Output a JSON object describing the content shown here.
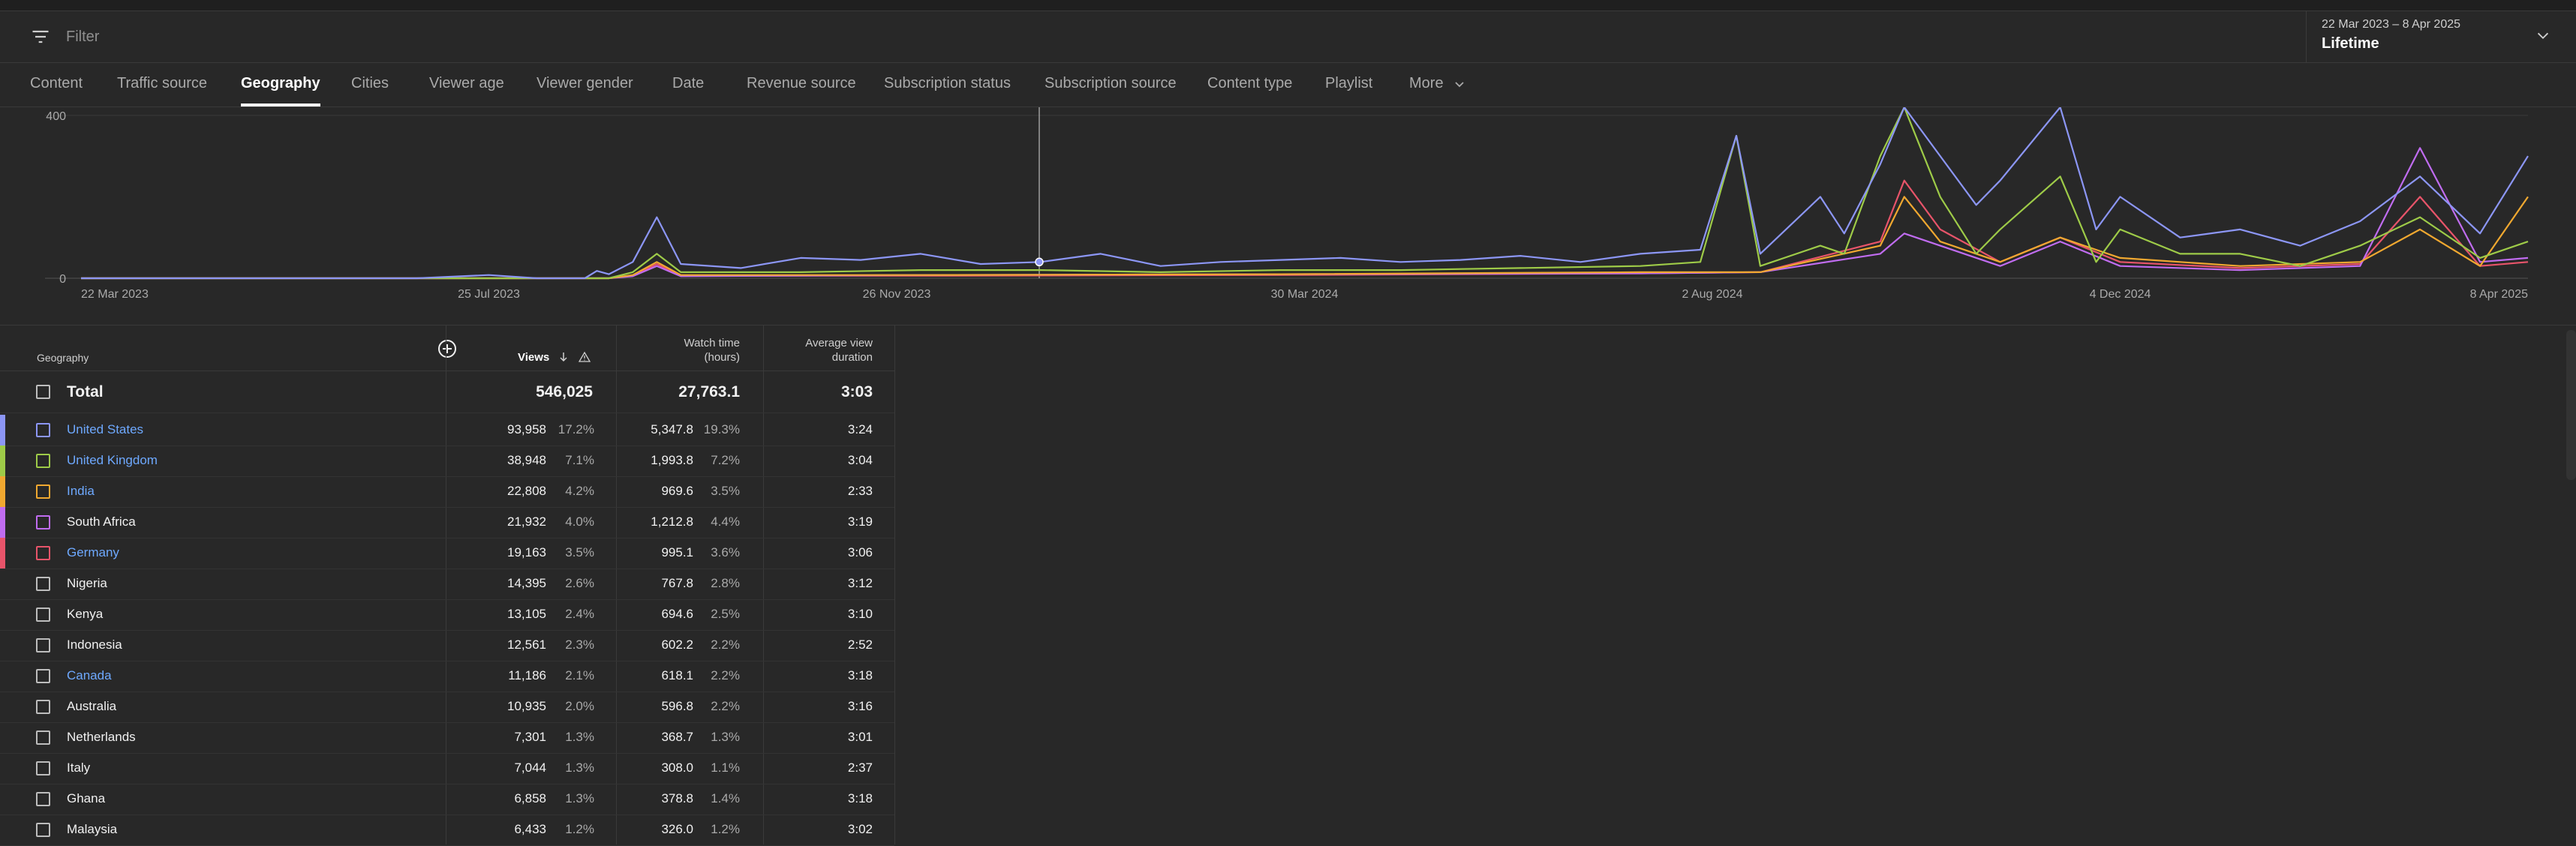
{
  "filter": {
    "placeholder": "Filter",
    "icon": "filter-icon"
  },
  "date_selector": {
    "range": "22 Mar 2023 – 8 Apr 2025",
    "label": "Lifetime"
  },
  "tabs": [
    {
      "label": "Content"
    },
    {
      "label": "Traffic source"
    },
    {
      "label": "Geography",
      "active": true
    },
    {
      "label": "Cities"
    },
    {
      "label": "Viewer age"
    },
    {
      "label": "Viewer gender"
    },
    {
      "label": "Date"
    },
    {
      "label": "Revenue source"
    },
    {
      "label": "Subscription status"
    },
    {
      "label": "Subscription source"
    },
    {
      "label": "Content type"
    },
    {
      "label": "Playlist"
    },
    {
      "label": "More"
    }
  ],
  "chart_data": {
    "type": "line",
    "y_ticks": [
      "400",
      "0"
    ],
    "x_ticks": [
      "22 Mar 2023",
      "25 Jul 2023",
      "26 Nov 2023",
      "30 Mar 2024",
      "2 Aug 2024",
      "4 Dec 2024",
      "8 Apr 2025"
    ],
    "ylim": [
      0,
      420
    ],
    "colors": {
      "United States": "#8c96f5",
      "United Kingdom": "#9ecb48",
      "India": "#f0a830",
      "South Africa": "#c06cf0",
      "Germany": "#e8546a"
    },
    "series": [
      {
        "name": "United States",
        "color": "#8c96f5",
        "points": [
          [
            0,
            0
          ],
          [
            28,
            0
          ],
          [
            34,
            8
          ],
          [
            38,
            0
          ],
          [
            42,
            0
          ],
          [
            43,
            18
          ],
          [
            44,
            10
          ],
          [
            46,
            40
          ],
          [
            48,
            150
          ],
          [
            50,
            35
          ],
          [
            55,
            25
          ],
          [
            60,
            50
          ],
          [
            65,
            45
          ],
          [
            70,
            60
          ],
          [
            75,
            35
          ],
          [
            80,
            40
          ],
          [
            85,
            60
          ],
          [
            90,
            30
          ],
          [
            95,
            40
          ],
          [
            100,
            45
          ],
          [
            105,
            50
          ],
          [
            110,
            40
          ],
          [
            115,
            45
          ],
          [
            120,
            55
          ],
          [
            125,
            40
          ],
          [
            130,
            60
          ],
          [
            135,
            70
          ],
          [
            138,
            350
          ],
          [
            140,
            60
          ],
          [
            145,
            200
          ],
          [
            147,
            110
          ],
          [
            150,
            280
          ],
          [
            152,
            420
          ],
          [
            155,
            300
          ],
          [
            158,
            180
          ],
          [
            160,
            240
          ],
          [
            165,
            420
          ],
          [
            168,
            120
          ],
          [
            170,
            200
          ],
          [
            175,
            100
          ],
          [
            180,
            120
          ],
          [
            185,
            80
          ],
          [
            190,
            140
          ],
          [
            195,
            250
          ],
          [
            200,
            110
          ],
          [
            204,
            300
          ]
        ]
      },
      {
        "name": "United Kingdom",
        "color": "#9ecb48",
        "points": [
          [
            0,
            0
          ],
          [
            44,
            0
          ],
          [
            46,
            15
          ],
          [
            48,
            60
          ],
          [
            50,
            15
          ],
          [
            60,
            15
          ],
          [
            70,
            20
          ],
          [
            80,
            20
          ],
          [
            90,
            15
          ],
          [
            100,
            20
          ],
          [
            110,
            20
          ],
          [
            120,
            25
          ],
          [
            130,
            30
          ],
          [
            135,
            40
          ],
          [
            138,
            350
          ],
          [
            140,
            30
          ],
          [
            145,
            80
          ],
          [
            147,
            60
          ],
          [
            150,
            300
          ],
          [
            152,
            420
          ],
          [
            155,
            200
          ],
          [
            158,
            60
          ],
          [
            160,
            120
          ],
          [
            165,
            250
          ],
          [
            168,
            40
          ],
          [
            170,
            120
          ],
          [
            175,
            60
          ],
          [
            180,
            60
          ],
          [
            185,
            30
          ],
          [
            190,
            80
          ],
          [
            195,
            150
          ],
          [
            200,
            50
          ],
          [
            204,
            90
          ]
        ]
      },
      {
        "name": "India",
        "color": "#f0a830",
        "points": [
          [
            0,
            0
          ],
          [
            44,
            0
          ],
          [
            46,
            8
          ],
          [
            48,
            40
          ],
          [
            50,
            8
          ],
          [
            70,
            8
          ],
          [
            100,
            10
          ],
          [
            130,
            15
          ],
          [
            140,
            15
          ],
          [
            150,
            80
          ],
          [
            152,
            200
          ],
          [
            155,
            90
          ],
          [
            160,
            40
          ],
          [
            165,
            100
          ],
          [
            170,
            50
          ],
          [
            180,
            30
          ],
          [
            190,
            40
          ],
          [
            195,
            120
          ],
          [
            200,
            30
          ],
          [
            204,
            200
          ]
        ]
      },
      {
        "name": "South Africa",
        "color": "#c06cf0",
        "points": [
          [
            0,
            0
          ],
          [
            44,
            0
          ],
          [
            46,
            5
          ],
          [
            48,
            30
          ],
          [
            50,
            5
          ],
          [
            70,
            8
          ],
          [
            100,
            10
          ],
          [
            130,
            12
          ],
          [
            140,
            15
          ],
          [
            150,
            60
          ],
          [
            152,
            110
          ],
          [
            155,
            80
          ],
          [
            160,
            30
          ],
          [
            165,
            90
          ],
          [
            170,
            30
          ],
          [
            180,
            20
          ],
          [
            190,
            30
          ],
          [
            195,
            320
          ],
          [
            200,
            40
          ],
          [
            204,
            50
          ]
        ]
      },
      {
        "name": "Germany",
        "color": "#e8546a",
        "points": [
          [
            0,
            0
          ],
          [
            44,
            0
          ],
          [
            46,
            6
          ],
          [
            48,
            35
          ],
          [
            50,
            6
          ],
          [
            70,
            6
          ],
          [
            100,
            8
          ],
          [
            130,
            12
          ],
          [
            140,
            15
          ],
          [
            150,
            90
          ],
          [
            152,
            240
          ],
          [
            155,
            120
          ],
          [
            160,
            40
          ],
          [
            165,
            100
          ],
          [
            170,
            40
          ],
          [
            180,
            25
          ],
          [
            190,
            35
          ],
          [
            195,
            200
          ],
          [
            200,
            30
          ],
          [
            204,
            40
          ]
        ]
      }
    ]
  },
  "table": {
    "headers": {
      "geography": "Geography",
      "views": "Views",
      "watch_time_1": "Watch time",
      "watch_time_2": "(hours)",
      "avd_1": "Average view",
      "avd_2": "duration"
    },
    "total": {
      "label": "Total",
      "views": "546,025",
      "watch": "27,763.1",
      "avd": "3:03"
    },
    "rows": [
      {
        "name": "United States",
        "link": true,
        "color": "#8c96f5",
        "views": "93,958",
        "views_pct": "17.2%",
        "watch": "5,347.8",
        "watch_pct": "19.3%",
        "avd": "3:24"
      },
      {
        "name": "United Kingdom",
        "link": true,
        "color": "#9ecb48",
        "views": "38,948",
        "views_pct": "7.1%",
        "watch": "1,993.8",
        "watch_pct": "7.2%",
        "avd": "3:04"
      },
      {
        "name": "India",
        "link": true,
        "color": "#f0a830",
        "views": "22,808",
        "views_pct": "4.2%",
        "watch": "969.6",
        "watch_pct": "3.5%",
        "avd": "2:33"
      },
      {
        "name": "South Africa",
        "link": false,
        "color": "#c06cf0",
        "views": "21,932",
        "views_pct": "4.0%",
        "watch": "1,212.8",
        "watch_pct": "4.4%",
        "avd": "3:19"
      },
      {
        "name": "Germany",
        "link": true,
        "color": "#e8546a",
        "views": "19,163",
        "views_pct": "3.5%",
        "watch": "995.1",
        "watch_pct": "3.6%",
        "avd": "3:06"
      },
      {
        "name": "Nigeria",
        "link": false,
        "color": "",
        "views": "14,395",
        "views_pct": "2.6%",
        "watch": "767.8",
        "watch_pct": "2.8%",
        "avd": "3:12"
      },
      {
        "name": "Kenya",
        "link": false,
        "color": "",
        "views": "13,105",
        "views_pct": "2.4%",
        "watch": "694.6",
        "watch_pct": "2.5%",
        "avd": "3:10"
      },
      {
        "name": "Indonesia",
        "link": false,
        "color": "",
        "views": "12,561",
        "views_pct": "2.3%",
        "watch": "602.2",
        "watch_pct": "2.2%",
        "avd": "2:52"
      },
      {
        "name": "Canada",
        "link": true,
        "color": "",
        "views": "11,186",
        "views_pct": "2.1%",
        "watch": "618.1",
        "watch_pct": "2.2%",
        "avd": "3:18"
      },
      {
        "name": "Australia",
        "link": false,
        "color": "",
        "views": "10,935",
        "views_pct": "2.0%",
        "watch": "596.8",
        "watch_pct": "2.2%",
        "avd": "3:16"
      },
      {
        "name": "Netherlands",
        "link": false,
        "color": "",
        "views": "7,301",
        "views_pct": "1.3%",
        "watch": "368.7",
        "watch_pct": "1.3%",
        "avd": "3:01"
      },
      {
        "name": "Italy",
        "link": false,
        "color": "",
        "views": "7,044",
        "views_pct": "1.3%",
        "watch": "308.0",
        "watch_pct": "1.1%",
        "avd": "2:37"
      },
      {
        "name": "Ghana",
        "link": false,
        "color": "",
        "views": "6,858",
        "views_pct": "1.3%",
        "watch": "378.8",
        "watch_pct": "1.4%",
        "avd": "3:18"
      },
      {
        "name": "Malaysia",
        "link": false,
        "color": "",
        "views": "6,433",
        "views_pct": "1.2%",
        "watch": "326.0",
        "watch_pct": "1.2%",
        "avd": "3:02"
      }
    ]
  }
}
